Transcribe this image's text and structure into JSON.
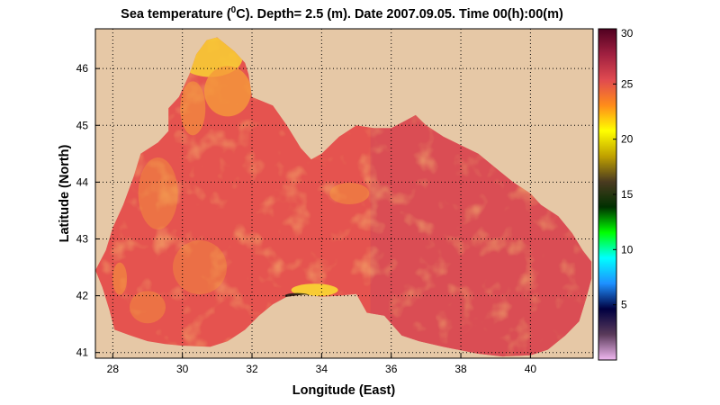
{
  "title": {
    "prefix": "Sea temperature (",
    "sup": "0",
    "suffix": "C). Depth=  2.5 (m). Date 2007.09.05. Time 00(h):00(m)"
  },
  "chart_data": {
    "type": "heatmap",
    "xlabel": "Longitude (East)",
    "ylabel": "Latitude (North)",
    "xlim": [
      27.5,
      41.8
    ],
    "ylim": [
      40.9,
      46.7
    ],
    "x_ticks": [
      28,
      30,
      32,
      34,
      36,
      38,
      40
    ],
    "y_ticks": [
      41,
      42,
      43,
      44,
      45,
      46
    ],
    "grid": true,
    "colorbar": {
      "range": [
        0,
        30
      ],
      "ticks": [
        5,
        10,
        15,
        20,
        25,
        30
      ],
      "colors": [
        "#f0b8f0",
        "#5a3a5a",
        "#000040",
        "#1e90ff",
        "#00ffff",
        "#00ff00",
        "#003000",
        "#4a3a20",
        "#bfa000",
        "#ffff00",
        "#ff8c1a",
        "#e04a50",
        "#a02040",
        "#500020"
      ]
    },
    "colors": {
      "land": "#e6c8a6",
      "sea": "#e5534f",
      "sea_east": "#d84c55",
      "warm_accent": "#f59a3a",
      "shelf_warm": "#f9d233",
      "cold_upwelling": "#1a1a10"
    },
    "sea_outline_lonlat": [
      [
        27.5,
        42.45
      ],
      [
        27.7,
        42.15
      ],
      [
        27.9,
        41.75
      ],
      [
        28.05,
        41.4
      ],
      [
        28.5,
        41.3
      ],
      [
        29.0,
        41.2
      ],
      [
        29.5,
        41.15
      ],
      [
        30.0,
        41.12
      ],
      [
        30.8,
        41.1
      ],
      [
        31.3,
        41.2
      ],
      [
        31.8,
        41.4
      ],
      [
        32.2,
        41.65
      ],
      [
        32.6,
        41.85
      ],
      [
        33.0,
        41.98
      ],
      [
        33.5,
        42.02
      ],
      [
        34.0,
        41.98
      ],
      [
        34.5,
        42.0
      ],
      [
        35.0,
        42.03
      ],
      [
        35.3,
        41.7
      ],
      [
        35.8,
        41.65
      ],
      [
        36.3,
        41.3
      ],
      [
        36.8,
        41.2
      ],
      [
        37.5,
        41.1
      ],
      [
        38.5,
        40.98
      ],
      [
        39.2,
        40.93
      ],
      [
        40.0,
        40.95
      ],
      [
        40.5,
        41.05
      ],
      [
        41.0,
        41.3
      ],
      [
        41.4,
        41.55
      ],
      [
        41.6,
        41.95
      ],
      [
        41.75,
        42.3
      ],
      [
        41.75,
        42.6
      ],
      [
        41.5,
        42.8
      ],
      [
        41.2,
        43.1
      ],
      [
        40.8,
        43.4
      ],
      [
        40.3,
        43.6
      ],
      [
        40.0,
        43.8
      ],
      [
        39.5,
        44.0
      ],
      [
        39.0,
        44.25
      ],
      [
        38.5,
        44.5
      ],
      [
        38.0,
        44.65
      ],
      [
        37.5,
        44.8
      ],
      [
        37.0,
        45.0
      ],
      [
        36.7,
        45.18
      ],
      [
        36.4,
        45.08
      ],
      [
        36.0,
        44.95
      ],
      [
        35.5,
        44.95
      ],
      [
        35.0,
        45.0
      ],
      [
        34.5,
        44.8
      ],
      [
        34.0,
        44.5
      ],
      [
        33.7,
        44.4
      ],
      [
        33.4,
        44.6
      ],
      [
        33.0,
        45.0
      ],
      [
        32.6,
        45.35
      ],
      [
        32.0,
        45.5
      ],
      [
        31.9,
        45.9
      ],
      [
        31.8,
        46.1
      ],
      [
        31.5,
        46.3
      ],
      [
        31.0,
        46.55
      ],
      [
        30.7,
        46.5
      ],
      [
        30.4,
        46.25
      ],
      [
        30.2,
        45.9
      ],
      [
        29.9,
        45.5
      ],
      [
        29.6,
        45.3
      ],
      [
        29.6,
        44.9
      ],
      [
        29.3,
        44.7
      ],
      [
        28.8,
        44.5
      ],
      [
        28.6,
        44.1
      ],
      [
        28.3,
        43.6
      ],
      [
        28.0,
        43.2
      ],
      [
        27.8,
        42.8
      ],
      [
        27.5,
        42.45
      ]
    ]
  }
}
